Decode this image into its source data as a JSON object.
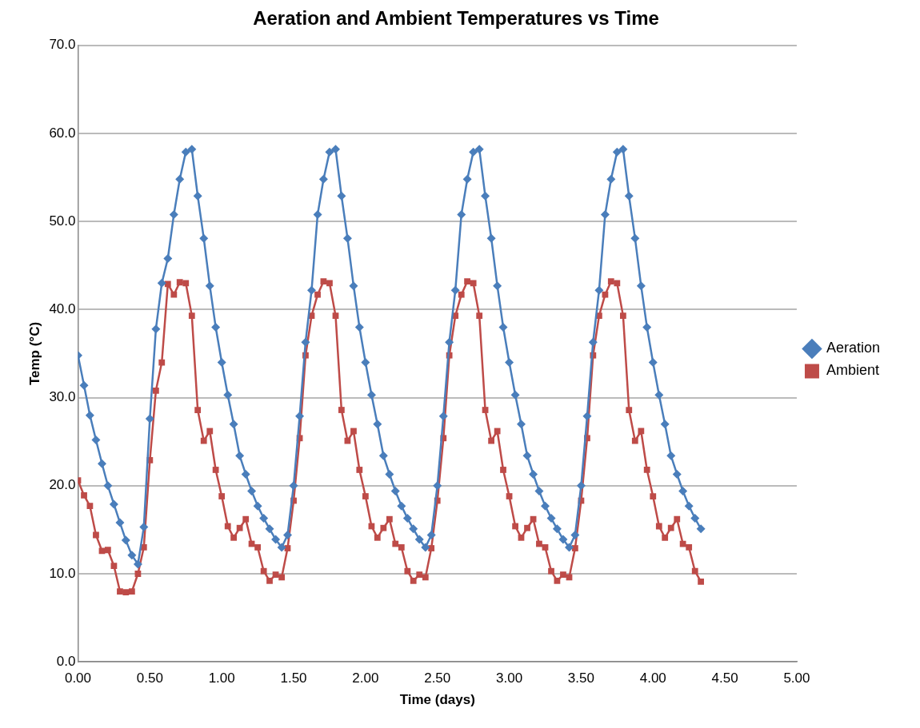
{
  "chart_data": {
    "type": "line",
    "title": "Aeration and Ambient Temperatures vs Time",
    "xlabel": "Time (days)",
    "ylabel": "Temp (°C)",
    "x": [
      0,
      0.042,
      0.083,
      0.125,
      0.167,
      0.208,
      0.25,
      0.292,
      0.333,
      0.375,
      0.417,
      0.458,
      0.5,
      0.542,
      0.583,
      0.625,
      0.667,
      0.708,
      0.75,
      0.792,
      0.833,
      0.875,
      0.917,
      0.958,
      1,
      1.042,
      1.083,
      1.125,
      1.167,
      1.208,
      1.25,
      1.292,
      1.333,
      1.375,
      1.417,
      1.458,
      1.5,
      1.542,
      1.583,
      1.625,
      1.667,
      1.708,
      1.75,
      1.792,
      1.833,
      1.875,
      1.917,
      1.958,
      2,
      2.042,
      2.083,
      2.125,
      2.167,
      2.208,
      2.25,
      2.292,
      2.333,
      2.375,
      2.417,
      2.458,
      2.5,
      2.542,
      2.583,
      2.625,
      2.667,
      2.708,
      2.75,
      2.792,
      2.833,
      2.875,
      2.917,
      2.958,
      3,
      3.042,
      3.083,
      3.125,
      3.167,
      3.208,
      3.25,
      3.292,
      3.333,
      3.375,
      3.417,
      3.458,
      3.5,
      3.542,
      3.583,
      3.625,
      3.667,
      3.708,
      3.75,
      3.792,
      3.833,
      3.875,
      3.917,
      3.958,
      4,
      4.042,
      4.083,
      4.125,
      4.167,
      4.208,
      4.25,
      4.292,
      4.333
    ],
    "series": [
      {
        "name": "Aeration",
        "color": "#4a7ebb",
        "marker": "diamond",
        "values": [
          34.8,
          31.4,
          28.0,
          25.2,
          22.5,
          20.0,
          17.9,
          15.8,
          13.8,
          12.1,
          11.1,
          15.3,
          27.6,
          37.8,
          43.0,
          45.8,
          50.8,
          54.8,
          57.9,
          58.2,
          52.9,
          48.1,
          42.7,
          38.0,
          34.0,
          30.3,
          27.0,
          23.4,
          21.3,
          19.4,
          17.7,
          16.3,
          15.1,
          13.9,
          13.0,
          14.4,
          20.0,
          27.9,
          36.3,
          42.2,
          50.8,
          54.8,
          57.9,
          58.2,
          52.9,
          48.1,
          42.7,
          38.0,
          34.0,
          30.3,
          27.0,
          23.4,
          21.3,
          19.4,
          17.7,
          16.3,
          15.1,
          13.9,
          13.0,
          14.4,
          20.0,
          27.9,
          36.3,
          42.2,
          50.8,
          54.8,
          57.9,
          58.2,
          52.9,
          48.1,
          42.7,
          38.0,
          34.0,
          30.3,
          27.0,
          23.4,
          21.3,
          19.4,
          17.7,
          16.3,
          15.1,
          13.9,
          13.0,
          14.4,
          20.0,
          27.9,
          36.3,
          42.2,
          50.8,
          54.8,
          57.9,
          58.2,
          52.9,
          48.1,
          42.7,
          38.0,
          34.0,
          30.3,
          27.0,
          23.4,
          21.3,
          19.4,
          17.7,
          16.3,
          15.1
        ]
      },
      {
        "name": "Ambient",
        "color": "#be4b48",
        "marker": "square",
        "values": [
          20.6,
          18.9,
          17.7,
          14.4,
          12.6,
          12.7,
          10.9,
          8.0,
          7.9,
          8.0,
          10.0,
          13.0,
          22.9,
          30.8,
          34.0,
          42.9,
          41.7,
          43.1,
          43.0,
          39.3,
          28.6,
          25.1,
          26.2,
          21.8,
          18.8,
          15.4,
          14.1,
          15.2,
          16.2,
          13.4,
          13.0,
          10.3,
          9.2,
          9.9,
          9.6,
          12.9,
          18.3,
          25.4,
          34.8,
          39.3,
          41.7,
          43.2,
          43.0,
          39.3,
          28.6,
          25.1,
          26.2,
          21.8,
          18.8,
          15.4,
          14.1,
          15.2,
          16.2,
          13.4,
          13.0,
          10.3,
          9.2,
          9.9,
          9.6,
          12.9,
          18.3,
          25.4,
          34.8,
          39.3,
          41.7,
          43.2,
          43.0,
          39.3,
          28.6,
          25.1,
          26.2,
          21.8,
          18.8,
          15.4,
          14.1,
          15.2,
          16.2,
          13.4,
          13.0,
          10.3,
          9.2,
          9.9,
          9.6,
          12.9,
          18.3,
          25.4,
          34.8,
          39.3,
          41.7,
          43.2,
          43.0,
          39.3,
          28.6,
          25.1,
          26.2,
          21.8,
          18.8,
          15.4,
          14.1,
          15.2,
          16.2,
          13.4,
          13.0,
          10.3,
          9.1
        ]
      }
    ],
    "xlim": [
      0,
      5
    ],
    "xticks": [
      {
        "value": 0,
        "label": "0.00"
      },
      {
        "value": 0.5,
        "label": "0.50"
      },
      {
        "value": 1,
        "label": "1.00"
      },
      {
        "value": 1.5,
        "label": "1.50"
      },
      {
        "value": 2,
        "label": "2.00"
      },
      {
        "value": 2.5,
        "label": "2.50"
      },
      {
        "value": 3,
        "label": "3.00"
      },
      {
        "value": 3.5,
        "label": "3.50"
      },
      {
        "value": 4,
        "label": "4.00"
      },
      {
        "value": 4.5,
        "label": "4.50"
      },
      {
        "value": 5,
        "label": "5.00"
      }
    ],
    "ylim": [
      0,
      70
    ],
    "yticks": [
      {
        "value": 0,
        "label": "0.0"
      },
      {
        "value": 10,
        "label": "10.0"
      },
      {
        "value": 20,
        "label": "20.0"
      },
      {
        "value": 30,
        "label": "30.0"
      },
      {
        "value": 40,
        "label": "40.0"
      },
      {
        "value": 50,
        "label": "50.0"
      },
      {
        "value": 60,
        "label": "60.0"
      },
      {
        "value": 70,
        "label": "70.0"
      }
    ],
    "grid": "y",
    "legend": "right",
    "line_style": "solid"
  }
}
